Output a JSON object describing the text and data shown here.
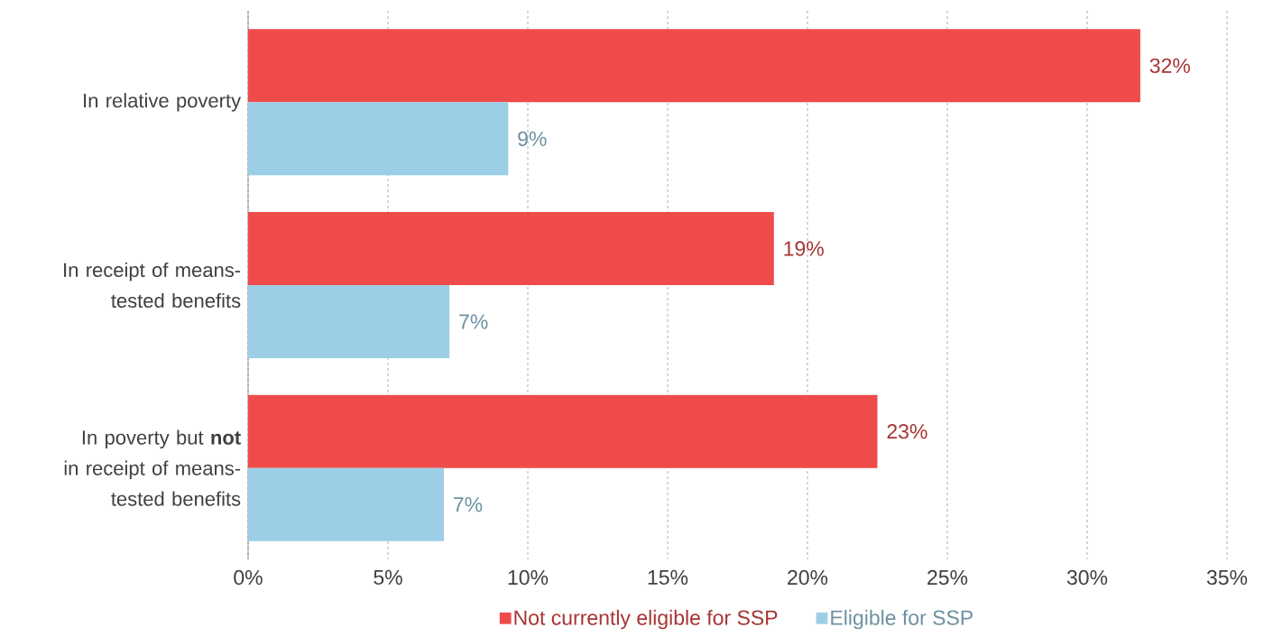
{
  "chart_data": {
    "type": "bar",
    "orientation": "horizontal",
    "categories": [
      "In relative poverty",
      "In receipt of means-tested benefits",
      "In poverty but **not** in receipt of means-tested benefits"
    ],
    "series": [
      {
        "name": "Not currently eligible for SSP",
        "color": "#ef4b4b",
        "values": [
          31.9,
          18.8,
          22.5
        ],
        "value_labels": [
          "32%",
          "19%",
          "23%"
        ]
      },
      {
        "name": "Eligible for SSP",
        "color": "#9ccfe6",
        "values": [
          9.3,
          7.2,
          7.0
        ],
        "value_labels": [
          "9%",
          "7%",
          "7%"
        ]
      }
    ],
    "xlim": [
      0,
      35
    ],
    "xticks": [
      {
        "value": 0,
        "label": "0%"
      },
      {
        "value": 5,
        "label": "5%"
      },
      {
        "value": 10,
        "label": "10%"
      },
      {
        "value": 15,
        "label": "15%"
      },
      {
        "value": 20,
        "label": "20%"
      },
      {
        "value": 25,
        "label": "25%"
      },
      {
        "value": 30,
        "label": "30%"
      },
      {
        "value": 35,
        "label": "35%"
      }
    ],
    "grid": "x",
    "legend": "bottom"
  }
}
